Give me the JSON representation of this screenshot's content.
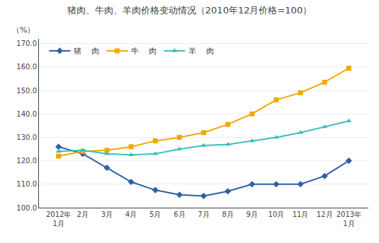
{
  "chart_data": {
    "type": "line",
    "title": "猪肉、牛肉、羊肉价格变动情况（2010年12月价格=100）",
    "ylabel": "（%）",
    "categories": [
      "2012年\n1月",
      "2月",
      "3月",
      "4月",
      "5月",
      "6月",
      "7月",
      "8月",
      "9月",
      "10月",
      "11月",
      "12月",
      "2013年\n1月"
    ],
    "series": [
      {
        "name": "猪    肉",
        "color": "#2e5fa3",
        "marker": "diamond",
        "values": [
          126.0,
          123.0,
          117.0,
          111.0,
          107.5,
          105.5,
          105.0,
          107.0,
          110.0,
          110.0,
          110.0,
          113.5,
          120.0
        ]
      },
      {
        "name": "牛    肉",
        "color": "#f0a800",
        "marker": "square",
        "values": [
          122.0,
          124.0,
          124.5,
          126.0,
          128.5,
          130.0,
          132.0,
          135.5,
          140.0,
          146.0,
          149.0,
          153.5,
          159.5
        ]
      },
      {
        "name": "羊    肉",
        "color": "#3cbfbf",
        "marker": "triangle-up",
        "values": [
          124.0,
          124.5,
          123.0,
          122.5,
          123.0,
          125.0,
          126.5,
          127.0,
          128.5,
          130.0,
          132.0,
          134.5,
          137.0
        ]
      }
    ],
    "ylim": [
      100.0,
      172.0
    ],
    "yticks": [
      {
        "value": 100,
        "label": "100.0"
      },
      {
        "value": 110,
        "label": "110.0"
      },
      {
        "value": 120,
        "label": "120.0"
      },
      {
        "value": 130,
        "label": "130.0"
      },
      {
        "value": 140,
        "label": "140.0"
      },
      {
        "value": 150,
        "label": "150.0"
      },
      {
        "value": 160,
        "label": "160.0"
      },
      {
        "value": 170,
        "label": "170.0"
      }
    ],
    "grid": true,
    "legend": "upper left"
  }
}
